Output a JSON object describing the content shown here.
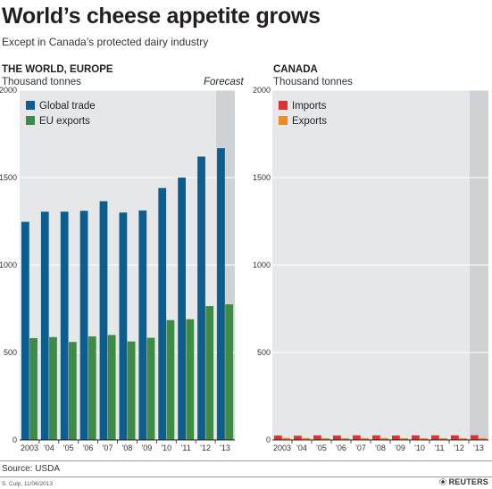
{
  "title": "World’s cheese appetite grows",
  "subtitle": "Except in Canada’s protected dairy industry",
  "source": "Source: USDA",
  "credit": "S. Culp, 11/06/2013",
  "brand": "REUTERS",
  "colors": {
    "global_trade": "#0b5e8e",
    "eu_exports": "#3e8b46",
    "imports": "#e03030",
    "exports": "#f08a24",
    "plot_bg": "#e6e7e8",
    "forecast_bg": "#cfd2d4"
  },
  "chart_data": [
    {
      "type": "bar",
      "title": "THE WORLD, EUROPE",
      "unit": "Thousand tonnes",
      "forecast_label": "Forecast",
      "forecast_categories": [
        "'13"
      ],
      "categories": [
        "2003",
        "'04",
        "'05",
        "'06",
        "'07",
        "'08",
        "'09",
        "'10",
        "'11",
        "'12",
        "'13"
      ],
      "ylim": [
        0,
        2000
      ],
      "yticks": [
        0,
        500,
        1000,
        1500,
        2000
      ],
      "grid": true,
      "legend": "top-left",
      "series": [
        {
          "name": "Global trade",
          "color": "#0b5e8e",
          "values": [
            1247,
            1305,
            1305,
            1310,
            1365,
            1300,
            1312,
            1440,
            1500,
            1620,
            1668
          ]
        },
        {
          "name": "EU exports",
          "color": "#3e8b46",
          "values": [
            582,
            588,
            560,
            592,
            600,
            563,
            584,
            685,
            690,
            765,
            775
          ]
        }
      ]
    },
    {
      "type": "bar",
      "title": "CANADA",
      "unit": "Thousand tonnes",
      "forecast_categories": [
        "'13"
      ],
      "categories": [
        "2003",
        "'04",
        "'05",
        "'06",
        "'07",
        "'08",
        "'09",
        "'10",
        "'11",
        "'12",
        "'13"
      ],
      "ylim": [
        0,
        2000
      ],
      "yticks": [
        0,
        500,
        1000,
        1500,
        2000
      ],
      "grid": true,
      "legend": "top-left",
      "series": [
        {
          "name": "Imports",
          "color": "#e03030",
          "values": [
            25,
            24,
            26,
            25,
            26,
            26,
            25,
            26,
            26,
            26,
            27
          ]
        },
        {
          "name": "Exports",
          "color": "#f08a24",
          "values": [
            12,
            11,
            10,
            10,
            11,
            11,
            10,
            10,
            10,
            10,
            10
          ]
        }
      ]
    }
  ]
}
